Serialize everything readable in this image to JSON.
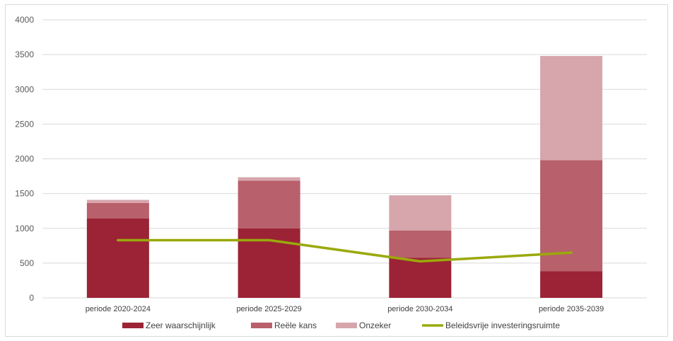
{
  "chart_data": {
    "type": "bar",
    "title": "",
    "xlabel": "",
    "ylabel": "",
    "ylim": [
      0,
      4000
    ],
    "yticks": [
      0,
      500,
      1000,
      1500,
      2000,
      2500,
      3000,
      3500,
      4000
    ],
    "ytick_labels": [
      "0",
      "500",
      "1000",
      "1500",
      "2000",
      "2500",
      "3000",
      "3500",
      "4000"
    ],
    "grid": true,
    "legend_position": "bottom",
    "categories": [
      "periode 2020-2024",
      "periode 2025-2029",
      "periode 2030-2034",
      "periode 2035-2039"
    ],
    "series": [
      {
        "name": "Zeer waarschijnlijk",
        "kind": "bar",
        "color": "#9b2335",
        "values": [
          1140,
          1000,
          575,
          385
        ]
      },
      {
        "name": "Reële kans",
        "kind": "bar",
        "color": "#b8606b",
        "values": [
          225,
          685,
          395,
          1595
        ]
      },
      {
        "name": "Onzeker",
        "kind": "bar",
        "color": "#d6a6ac",
        "values": [
          45,
          50,
          505,
          1500
        ]
      },
      {
        "name": "Beleidsvrije investeringsruimte",
        "kind": "line",
        "color": "#9aa90b",
        "values": [
          830,
          830,
          525,
          650
        ]
      }
    ]
  }
}
